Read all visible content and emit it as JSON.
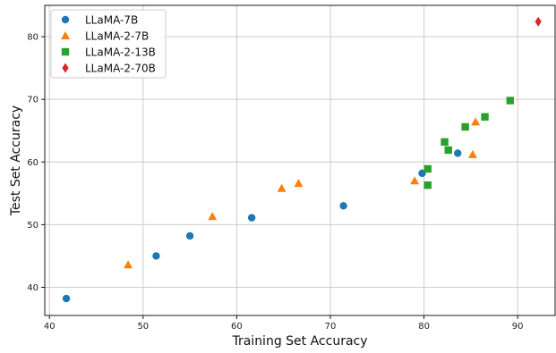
{
  "chart_data": {
    "type": "scatter",
    "title": "",
    "xlabel": "Training Set Accuracy",
    "ylabel": "Test Set Accuracy",
    "xlim": [
      39.5,
      94.0
    ],
    "ylim": [
      35.5,
      85.0
    ],
    "xticks": [
      40,
      50,
      60,
      70,
      80,
      90
    ],
    "yticks": [
      40,
      50,
      60,
      70,
      80
    ],
    "grid": true,
    "legend_position": "top-left",
    "series": [
      {
        "name": "LLaMA-7B",
        "marker": "circle",
        "color": "#1f77b4",
        "points": [
          [
            41.8,
            38.2
          ],
          [
            51.4,
            45.0
          ],
          [
            55.0,
            48.2
          ],
          [
            61.6,
            51.1
          ],
          [
            71.4,
            53.0
          ],
          [
            79.8,
            58.2
          ],
          [
            83.6,
            61.4
          ]
        ]
      },
      {
        "name": "LLaMA-2-7B",
        "marker": "triangle",
        "color": "#ff7f0e",
        "points": [
          [
            48.4,
            43.6
          ],
          [
            57.4,
            51.3
          ],
          [
            64.8,
            55.8
          ],
          [
            66.6,
            56.6
          ],
          [
            79.0,
            57.0
          ],
          [
            85.2,
            61.2
          ],
          [
            85.5,
            66.4
          ]
        ]
      },
      {
        "name": "LLaMA-2-13B",
        "marker": "square",
        "color": "#2ca02c",
        "points": [
          [
            80.4,
            56.3
          ],
          [
            80.4,
            58.9
          ],
          [
            82.2,
            63.2
          ],
          [
            82.6,
            61.9
          ],
          [
            84.4,
            65.6
          ],
          [
            86.5,
            67.2
          ],
          [
            89.2,
            69.8
          ]
        ]
      },
      {
        "name": "LLaMA-2-70B",
        "marker": "diamond",
        "color": "#d62728",
        "points": [
          [
            92.2,
            82.4
          ]
        ]
      }
    ]
  }
}
